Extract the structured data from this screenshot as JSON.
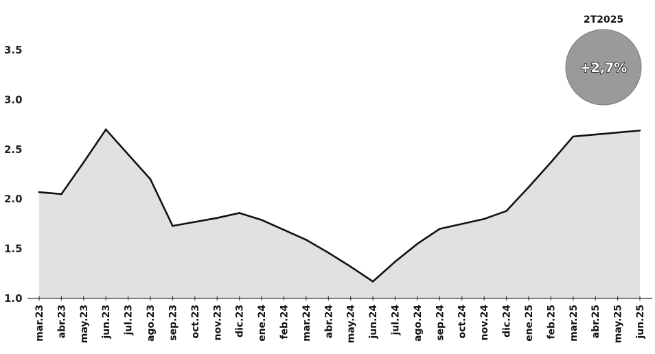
{
  "chart_data": {
    "type": "line",
    "categories": [
      "mar.23",
      "abr.23",
      "may.23",
      "jun.23",
      "jul.23",
      "ago.23",
      "sep.23",
      "oct.23",
      "nov.23",
      "dic.23",
      "ene.24",
      "feb.24",
      "mar.24",
      "abr.24",
      "may.24",
      "jun.24",
      "jul.24",
      "ago.24",
      "sep.24",
      "oct.24",
      "nov.24",
      "dic.24",
      "ene.25",
      "feb.25",
      "mar.25",
      "abr.25",
      "may.25",
      "jun.25"
    ],
    "series": [
      {
        "values": [
          2.07,
          2.05,
          2.37,
          2.7,
          2.45,
          2.2,
          1.73,
          1.77,
          1.81,
          1.86,
          1.79,
          1.69,
          1.59,
          1.46,
          1.32,
          1.17,
          1.37,
          1.55,
          1.7,
          1.75,
          1.8,
          1.88,
          2.12,
          2.37,
          2.63,
          2.65,
          2.67,
          2.69
        ]
      }
    ],
    "yticks": [
      "1.0",
      "1.5",
      "2.0",
      "2.5",
      "3.0",
      "3.5"
    ],
    "ylim": [
      1.0,
      3.7
    ],
    "grid": false,
    "line_color": "#111111",
    "fill_color": "#c8c8c8"
  },
  "annotation": {
    "period": "2T2025",
    "value": "+2,7%",
    "badge_color": "#9a9a9a"
  }
}
